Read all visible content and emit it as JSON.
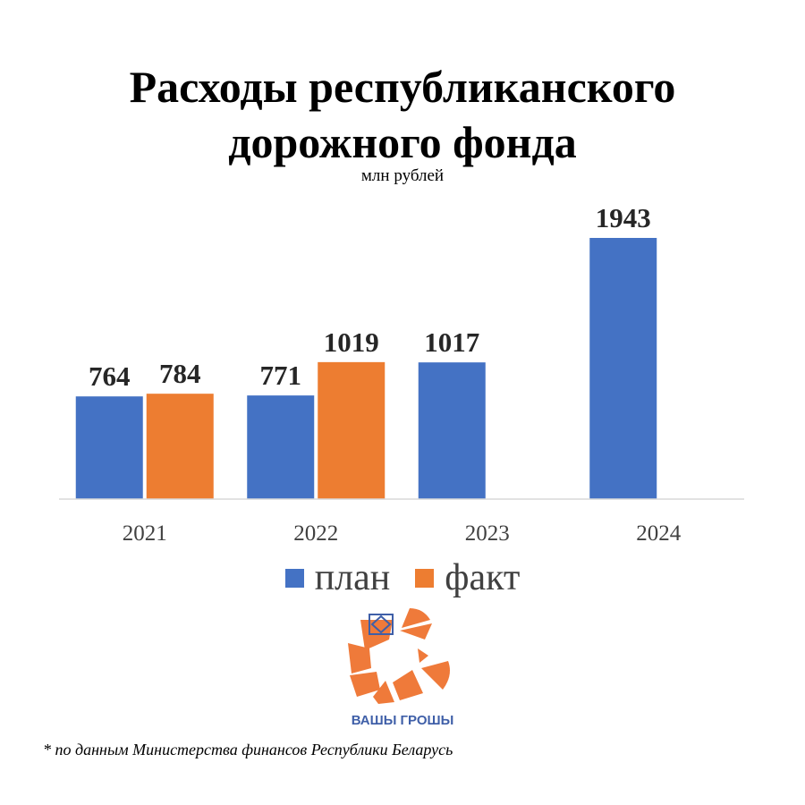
{
  "title_lines": [
    "Расходы республиканского",
    "дорожного фонда"
  ],
  "subtitle": "млн рублей",
  "colors": {
    "plan": "#4472C4",
    "fact": "#ED7D31",
    "logo_orange": "#EF7A3A",
    "logo_blue": "#3F5FA8"
  },
  "legend": {
    "plan_label": "план",
    "fact_label": "факт"
  },
  "chart_data": {
    "type": "bar",
    "title": "Расходы республиканского дорожного фонда",
    "subtitle": "млн рублей",
    "categories": [
      "2021",
      "2022",
      "2023",
      "2024"
    ],
    "series": [
      {
        "name": "план",
        "values": [
          764,
          771,
          1017,
          1943
        ]
      },
      {
        "name": "факт",
        "values": [
          784,
          1019,
          null,
          null
        ]
      }
    ],
    "ylim": [
      0,
      2000
    ],
    "grid": false,
    "legend_position": "bottom"
  },
  "logo": {
    "text": "ВАШЫ ГРОШЫ",
    "icon": "vashy-groshy-logo"
  },
  "footnote": "* по данным Министерства финансов Республики Беларусь"
}
